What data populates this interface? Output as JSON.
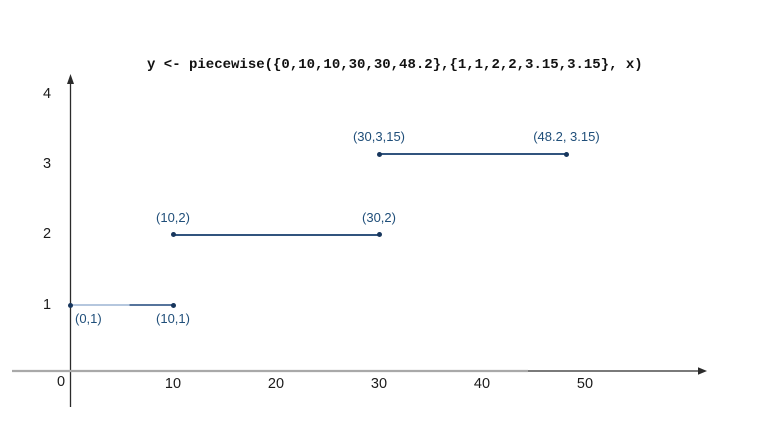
{
  "chart_data": {
    "type": "line",
    "title": "y <- piecewise({0,10,10,30,30,48.2},{1,1,2,2,3.15,3.15}, x)",
    "xlabel": "",
    "ylabel": "",
    "xlim": [
      -6,
      68
    ],
    "ylim": [
      -0.9,
      4.3
    ],
    "grid": false,
    "x_ticks": [
      10,
      20,
      30,
      40,
      50
    ],
    "y_ticks": [
      1,
      2,
      3,
      4
    ],
    "origin_label": "0",
    "segments": [
      {
        "x1": 0,
        "y1": 1,
        "x2": 10,
        "y2": 1,
        "label1": "(0,1)",
        "label2": "(10,1)",
        "label_pos": "below",
        "two_tone": true
      },
      {
        "x1": 10,
        "y1": 2,
        "x2": 30,
        "y2": 2,
        "label1": "(10,2)",
        "label2": "(30,2)",
        "label_pos": "above",
        "two_tone": false
      },
      {
        "x1": 30,
        "y1": 3.15,
        "x2": 48.2,
        "y2": 3.15,
        "label1": "(30,3,15)",
        "label2": "(48.2, 3.15)",
        "label_pos": "above",
        "two_tone": false
      }
    ]
  },
  "colors": {
    "point": "#17365d",
    "line": "#31547e",
    "line_light": "#b5c7de",
    "line_mid": "#56749c",
    "label_text": "#1f4e79",
    "axis": "#2b2b2b",
    "axis_secondary": "#a9a9a9",
    "tick_text": "#1a1a1a",
    "title_text": "#111111",
    "background": "#ffffff"
  }
}
